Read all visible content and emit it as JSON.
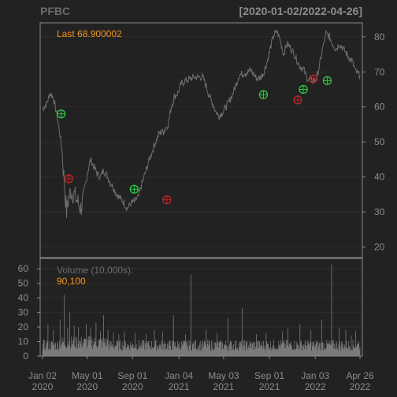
{
  "chart_data": {
    "type": "line",
    "ticker": "PFBC",
    "date_range": "[2020-01-02/2022-04-26]",
    "last_label": "Last 68.900002",
    "colors": {
      "background": "#222222",
      "price_line": "#6e6e6e",
      "grid": "#2c2c2c",
      "frame": "#8a8a8a",
      "text": "#8c8c8c",
      "accent": "#f7941d",
      "buy_marker": "#2ecc40",
      "sell_marker": "#c0262a",
      "volume_bar": "#7a7a7a"
    },
    "price_axis": {
      "ylim": [
        17,
        84
      ],
      "ticks": [
        20,
        30,
        40,
        50,
        60,
        70,
        80
      ]
    },
    "volume_axis": {
      "label": "Volume (10,000s):",
      "last_value": "90,100",
      "ylim": [
        0,
        65
      ],
      "ticks": [
        0,
        10,
        20,
        30,
        40,
        50,
        60
      ]
    },
    "x_axis": {
      "n_days": 583,
      "ticks": [
        {
          "i": 0,
          "line1": "Jan 02",
          "line2": "2020"
        },
        {
          "i": 82,
          "line1": "May 01",
          "line2": "2020"
        },
        {
          "i": 165,
          "line1": "Sep 01",
          "line2": "2020"
        },
        {
          "i": 250,
          "line1": "Jan 04",
          "line2": "2021"
        },
        {
          "i": 332,
          "line1": "May 03",
          "line2": "2021"
        },
        {
          "i": 416,
          "line1": "Sep 01",
          "line2": "2021"
        },
        {
          "i": 500,
          "line1": "Jan 03",
          "line2": "2022"
        },
        {
          "i": 582,
          "line1": "Apr 26",
          "line2": "2022"
        }
      ]
    },
    "price_series": {
      "name": "PFBC",
      "points": [
        [
          0,
          59.5
        ],
        [
          8,
          61
        ],
        [
          14,
          64
        ],
        [
          20,
          62.5
        ],
        [
          26,
          58
        ],
        [
          32,
          52
        ],
        [
          36,
          47
        ],
        [
          40,
          38
        ],
        [
          44,
          30
        ],
        [
          48,
          34
        ],
        [
          52,
          36
        ],
        [
          58,
          35
        ],
        [
          64,
          33
        ],
        [
          70,
          31
        ],
        [
          76,
          34
        ],
        [
          82,
          41
        ],
        [
          88,
          45
        ],
        [
          94,
          43
        ],
        [
          100,
          41
        ],
        [
          106,
          40
        ],
        [
          112,
          42
        ],
        [
          118,
          40.5
        ],
        [
          124,
          38.5
        ],
        [
          130,
          37
        ],
        [
          136,
          35
        ],
        [
          142,
          34
        ],
        [
          148,
          33
        ],
        [
          155,
          31
        ],
        [
          162,
          32.5
        ],
        [
          168,
          33
        ],
        [
          175,
          34
        ],
        [
          182,
          38
        ],
        [
          190,
          42
        ],
        [
          198,
          46
        ],
        [
          206,
          49.5
        ],
        [
          214,
          52.5
        ],
        [
          222,
          53
        ],
        [
          230,
          55
        ],
        [
          236,
          60
        ],
        [
          242,
          63
        ],
        [
          248,
          64
        ],
        [
          254,
          66.5
        ],
        [
          262,
          67.5
        ],
        [
          270,
          68
        ],
        [
          278,
          68.5
        ],
        [
          286,
          68.5
        ],
        [
          294,
          68.5
        ],
        [
          300,
          66
        ],
        [
          306,
          63
        ],
        [
          312,
          61
        ],
        [
          318,
          58.5
        ],
        [
          324,
          57.5
        ],
        [
          330,
          58.5
        ],
        [
          336,
          60
        ],
        [
          342,
          61.5
        ],
        [
          348,
          63.5
        ],
        [
          354,
          66
        ],
        [
          360,
          69
        ],
        [
          368,
          69.5
        ],
        [
          376,
          70
        ],
        [
          382,
          70.5
        ],
        [
          388,
          69
        ],
        [
          394,
          68
        ],
        [
          400,
          68.5
        ],
        [
          406,
          70
        ],
        [
          412,
          73
        ],
        [
          418,
          77
        ],
        [
          424,
          80.5
        ],
        [
          430,
          81.5
        ],
        [
          436,
          79
        ],
        [
          442,
          75
        ],
        [
          448,
          78
        ],
        [
          454,
          77
        ],
        [
          460,
          75.5
        ],
        [
          466,
          73.5
        ],
        [
          472,
          71.5
        ],
        [
          478,
          71
        ],
        [
          484,
          68.5
        ],
        [
          490,
          67.5
        ],
        [
          496,
          67.5
        ],
        [
          502,
          68
        ],
        [
          508,
          72
        ],
        [
          514,
          77
        ],
        [
          520,
          81
        ],
        [
          526,
          80
        ],
        [
          532,
          78
        ],
        [
          538,
          76.5
        ],
        [
          544,
          78
        ],
        [
          550,
          77
        ],
        [
          556,
          75.5
        ],
        [
          562,
          74
        ],
        [
          568,
          73
        ],
        [
          574,
          70
        ],
        [
          578,
          69.5
        ],
        [
          582,
          68.9
        ]
      ]
    },
    "signals": [
      {
        "type": "buy",
        "i": 34,
        "price": 58
      },
      {
        "type": "sell",
        "i": 48,
        "price": 39.5
      },
      {
        "type": "buy",
        "i": 168,
        "price": 36.5
      },
      {
        "type": "sell",
        "i": 228,
        "price": 33.5
      },
      {
        "type": "buy",
        "i": 405,
        "price": 63.5
      },
      {
        "type": "sell",
        "i": 468,
        "price": 62
      },
      {
        "type": "buy",
        "i": 478,
        "price": 65
      },
      {
        "type": "sell",
        "i": 496,
        "price": 68
      },
      {
        "type": "buy",
        "i": 522,
        "price": 67.5
      }
    ],
    "volume_series": {
      "base_level": 8,
      "spikes": [
        [
          10,
          22
        ],
        [
          20,
          18
        ],
        [
          32,
          25
        ],
        [
          40,
          42
        ],
        [
          46,
          19
        ],
        [
          50,
          30
        ],
        [
          58,
          21
        ],
        [
          66,
          20
        ],
        [
          80,
          22
        ],
        [
          88,
          19
        ],
        [
          98,
          23
        ],
        [
          106,
          17
        ],
        [
          112,
          28
        ],
        [
          120,
          18
        ],
        [
          130,
          16
        ],
        [
          140,
          15
        ],
        [
          150,
          17
        ],
        [
          170,
          16
        ],
        [
          190,
          15
        ],
        [
          205,
          18
        ],
        [
          220,
          17
        ],
        [
          240,
          28
        ],
        [
          262,
          15
        ],
        [
          272,
          56
        ],
        [
          300,
          18
        ],
        [
          320,
          16
        ],
        [
          340,
          26
        ],
        [
          366,
          33
        ],
        [
          392,
          15
        ],
        [
          410,
          16
        ],
        [
          440,
          17
        ],
        [
          450,
          19
        ],
        [
          472,
          22
        ],
        [
          492,
          18
        ],
        [
          512,
          25
        ],
        [
          530,
          63
        ],
        [
          544,
          19
        ],
        [
          556,
          18
        ],
        [
          566,
          14
        ],
        [
          574,
          17
        ],
        [
          580,
          10
        ]
      ]
    }
  }
}
